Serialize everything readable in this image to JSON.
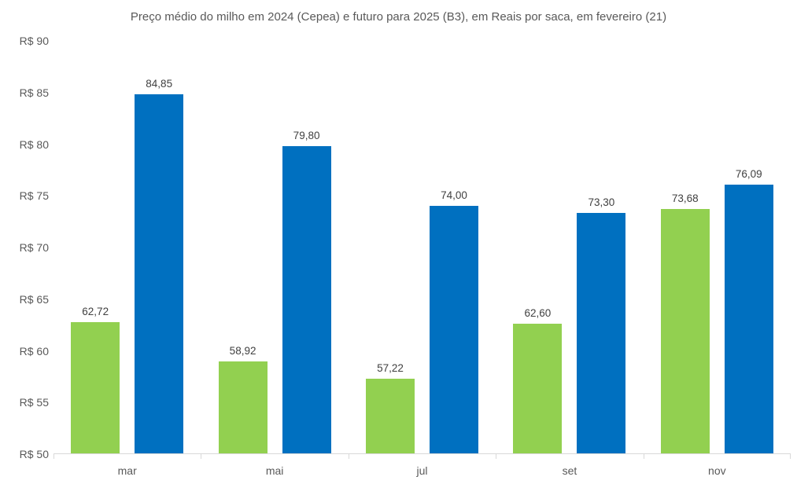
{
  "title": "Preço médio do milho em 2024 (Cepea) e futuro para 2025 (B3), em Reais por saca, em fevereiro (21)",
  "colors": {
    "series_2024": "#92D050",
    "series_2025": "#0070C0",
    "axis_line": "#d9d9d9",
    "title_text": "#595959",
    "tick_text": "#595959",
    "value_label_text": "#404040"
  },
  "chart_data": {
    "type": "bar",
    "title": "Preço médio do milho em 2024 (Cepea) e futuro para 2025 (B3), em Reais por saca, em fevereiro (21)",
    "categories": [
      "mar",
      "mai",
      "jul",
      "set",
      "nov"
    ],
    "series": [
      {
        "name": "2024 (Cepea)",
        "color": "#92D050",
        "values": [
          62.72,
          58.92,
          57.22,
          62.6,
          73.68
        ],
        "labels": [
          "62,72",
          "58,92",
          "57,22",
          "62,60",
          "73,68"
        ]
      },
      {
        "name": "futuro 2025 (B3)",
        "color": "#0070C0",
        "values": [
          84.85,
          79.8,
          74.0,
          73.3,
          76.09
        ],
        "labels": [
          "84,85",
          "79,80",
          "74,00",
          "73,30",
          "76,09"
        ]
      }
    ],
    "xlabel": "",
    "ylabel": "Reais por saca",
    "ylim": [
      50,
      90
    ],
    "ytick_step": 5,
    "ytick_labels": [
      "R$ 90",
      "R$ 85",
      "R$ 80",
      "R$ 75",
      "R$ 70",
      "R$ 65",
      "R$ 60",
      "R$ 55",
      "R$ 50"
    ],
    "grid": false,
    "legend_position": "none",
    "value_labels_shown": true
  }
}
